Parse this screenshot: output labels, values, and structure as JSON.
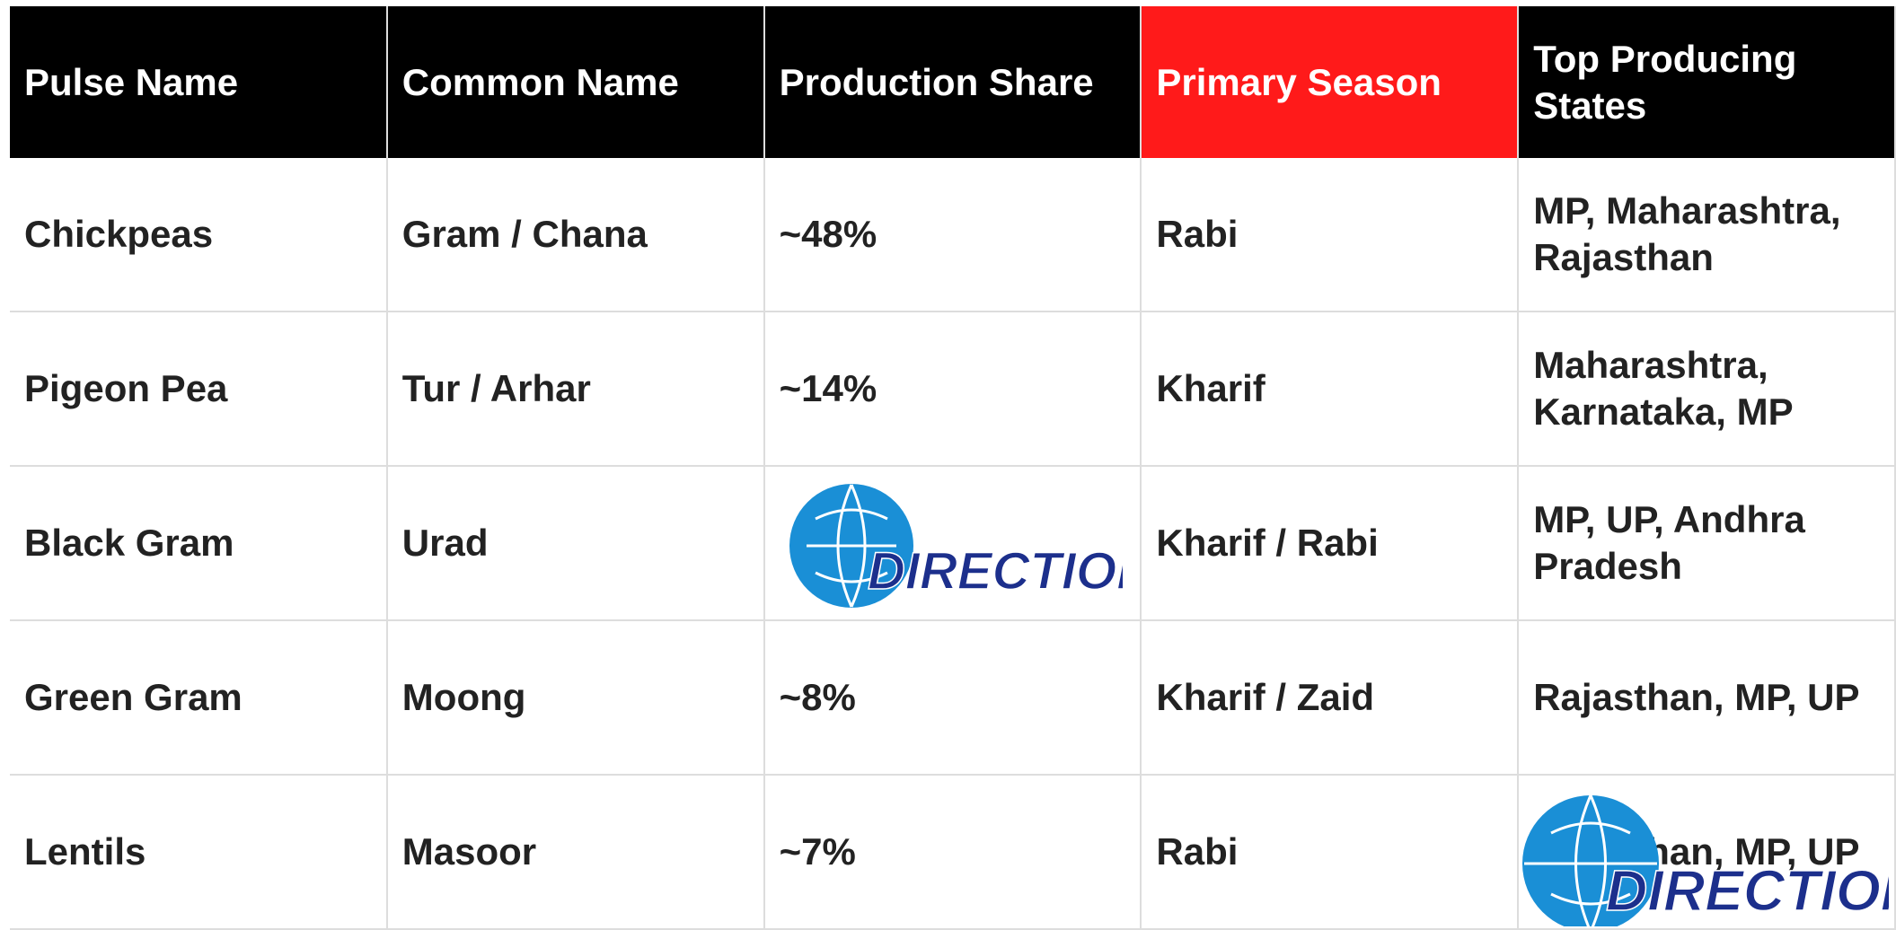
{
  "table": {
    "header": [
      "Pulse Name",
      "Common Name",
      "Production Share",
      "Primary Season",
      "Top Producing States"
    ],
    "highlight_column": 3,
    "highlight_color": "#ff1a1a",
    "rows": [
      [
        "Chickpeas",
        "Gram / Chana",
        "~48%",
        "Rabi",
        "MP, Maharashtra, Rajasthan"
      ],
      [
        "Pigeon Pea",
        "Tur / Arhar",
        "~14%",
        "Kharif",
        "Maharashtra, Karnataka, MP"
      ],
      [
        "Black Gram",
        "Urad",
        null,
        "Kharif / Rabi",
        "MP, UP, Andhra Pradesh"
      ],
      [
        "Green Gram",
        "Moong",
        "~8%",
        "Kharif / Zaid",
        "Rajasthan, MP, UP"
      ],
      [
        "Lentils",
        "Masoor",
        "~7%",
        "Rabi",
        "Rajasthan, MP, UP"
      ]
    ]
  },
  "watermark": "DIRECTION"
}
